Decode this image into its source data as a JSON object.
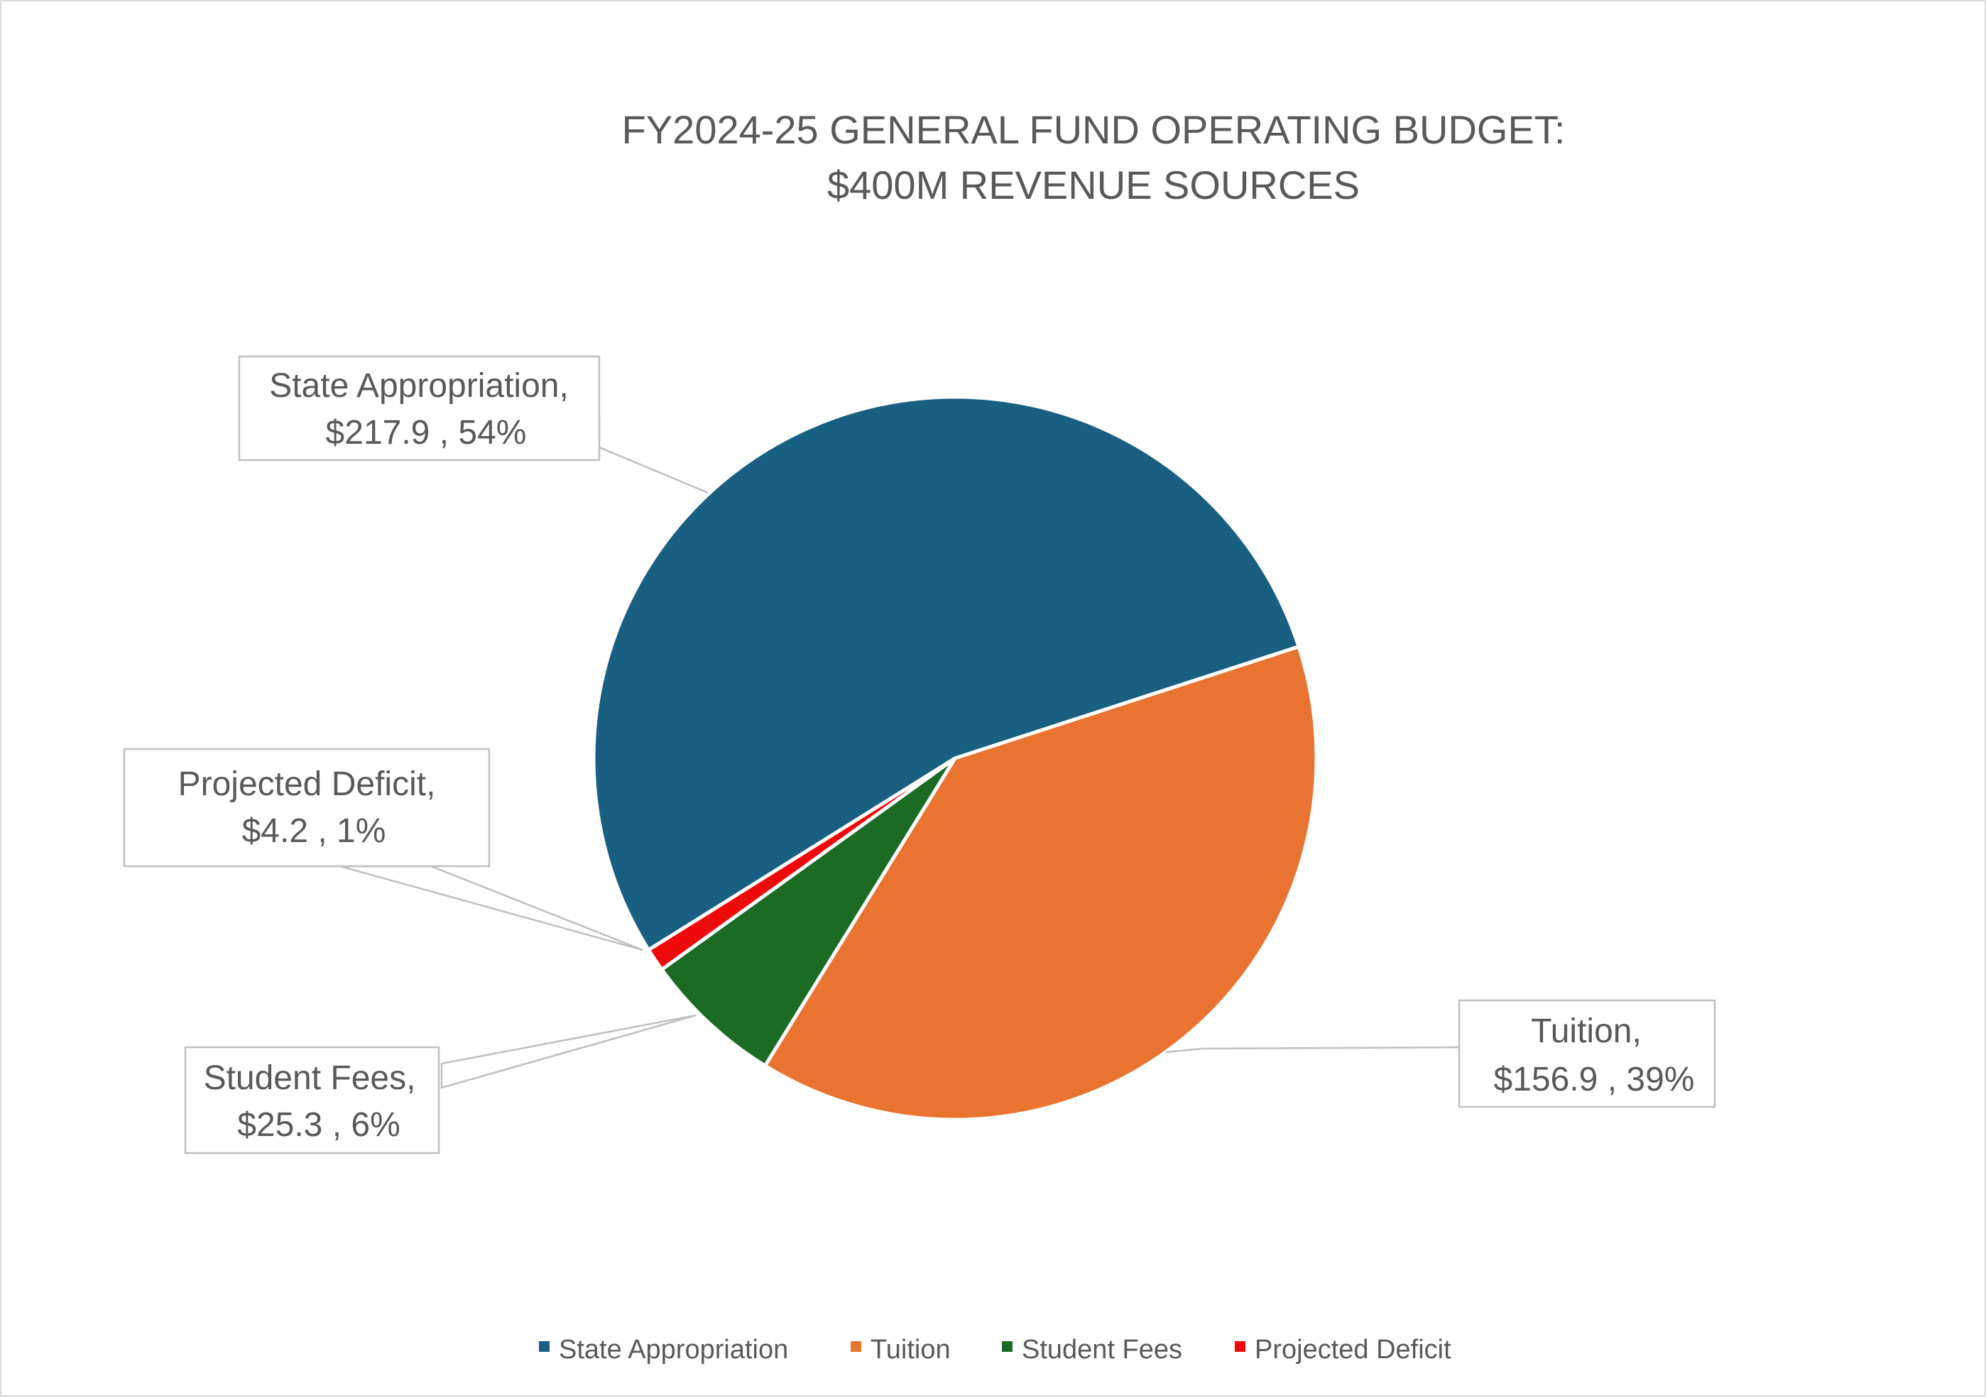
{
  "chart_data": {
    "type": "pie",
    "title_lines": [
      "FY2024-25 GENERAL FUND OPERATING BUDGET:",
      "$400M REVENUE SOURCES"
    ],
    "categories": [
      "State Appropriation",
      "Tuition",
      "Student Fees",
      "Projected Deficit"
    ],
    "values": [
      217.9,
      156.9,
      25.3,
      4.2
    ],
    "percent_labels": [
      "54%",
      "39%",
      "6%",
      "1%"
    ],
    "value_labels": [
      "$217.9",
      "$156.9",
      "$25.3",
      "$4.2"
    ],
    "data_labels": [
      {
        "line1": "State Appropriation,",
        "line2": "$217.9 , 54%"
      },
      {
        "line1": "Tuition,",
        "line2": "$156.9 , 39%"
      },
      {
        "line1": "Student Fees,",
        "line2": "$25.3 , 6%"
      },
      {
        "line1": "Projected Deficit,",
        "line2": "$4.2 , 1%"
      }
    ],
    "colors": [
      "#185f82",
      "#e97331",
      "#1b6b25",
      "#ee0a0a"
    ],
    "legend": {
      "position": "bottom",
      "entries": [
        "State Appropriation",
        "Tuition",
        "Student Fees",
        "Projected Deficit"
      ]
    }
  }
}
